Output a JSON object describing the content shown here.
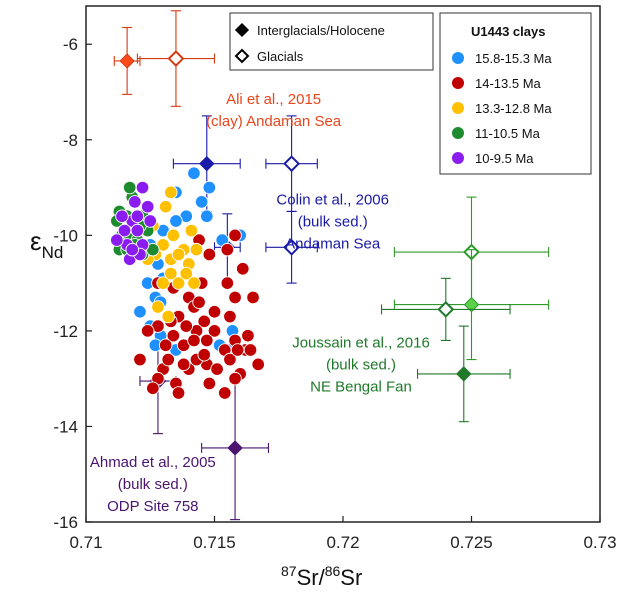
{
  "chart_data": {
    "type": "scatter",
    "xlabel": {
      "sup1": "87",
      "mid": "Sr/",
      "sup2": "86",
      "end": "Sr"
    },
    "ylabel": {
      "main": "ε",
      "sub": "Nd"
    },
    "xlim": [
      0.71,
      0.73
    ],
    "ylim": [
      -16,
      -5.2
    ],
    "xticks": [
      0.71,
      0.715,
      0.72,
      0.725,
      0.73
    ],
    "xtick_labels": [
      "0.71",
      "0.715",
      "0.72",
      "0.725",
      "0.73"
    ],
    "yticks": [
      -6,
      -8,
      -10,
      -12,
      -14,
      -16
    ],
    "ytick_labels": [
      "-6",
      "-8",
      "-10",
      "-12",
      "-14",
      "-16"
    ],
    "grid": false,
    "legend_symbols": {
      "placement": "top-center",
      "items": [
        {
          "label": "Interglacials/Holocene",
          "marker": "filled-diamond"
        },
        {
          "label": "Glacials",
          "marker": "open-diamond"
        }
      ]
    },
    "legend_clays": {
      "placement": "top-right",
      "title": "U1443 clays",
      "items": [
        {
          "label": "15.8-15.3 Ma",
          "color": "#1e90ff"
        },
        {
          "label": "14-13.5 Ma",
          "color": "#c00000"
        },
        {
          "label": "13.3-12.8 Ma",
          "color": "#ffc000"
        },
        {
          "label": "11-10.5 Ma",
          "color": "#1e8c2e"
        },
        {
          "label": "10-9.5 Ma",
          "color": "#8b1cf0"
        }
      ]
    },
    "series": [
      {
        "color": "#1e90ff",
        "points": [
          [
            0.7145,
            -9.3
          ],
          [
            0.7135,
            -9.1
          ],
          [
            0.7148,
            -9.0
          ],
          [
            0.7142,
            -8.7
          ],
          [
            0.7139,
            -9.6
          ],
          [
            0.713,
            -9.9
          ],
          [
            0.7125,
            -10.2
          ],
          [
            0.7128,
            -10.6
          ],
          [
            0.7124,
            -11.0
          ],
          [
            0.7127,
            -11.3
          ],
          [
            0.7121,
            -11.6
          ],
          [
            0.7129,
            -11.4
          ],
          [
            0.713,
            -10.9
          ],
          [
            0.7125,
            -11.9
          ],
          [
            0.7129,
            -12.1
          ],
          [
            0.7127,
            -12.3
          ],
          [
            0.7135,
            -12.4
          ],
          [
            0.7152,
            -12.3
          ],
          [
            0.7156,
            -12.4
          ],
          [
            0.7157,
            -12.0
          ],
          [
            0.716,
            -10.0
          ],
          [
            0.7153,
            -10.1
          ],
          [
            0.7147,
            -9.6
          ],
          [
            0.712,
            -10.3
          ],
          [
            0.7135,
            -9.7
          ]
        ]
      },
      {
        "color": "#c00000",
        "points": [
          [
            0.7158,
            -10.0
          ],
          [
            0.7155,
            -10.3
          ],
          [
            0.7148,
            -10.4
          ],
          [
            0.7144,
            -10.1
          ],
          [
            0.7161,
            -10.7
          ],
          [
            0.7155,
            -11.0
          ],
          [
            0.7145,
            -11.0
          ],
          [
            0.714,
            -11.3
          ],
          [
            0.7128,
            -11.0
          ],
          [
            0.7136,
            -11.7
          ],
          [
            0.7133,
            -11.8
          ],
          [
            0.7142,
            -11.5
          ],
          [
            0.715,
            -11.6
          ],
          [
            0.7158,
            -11.3
          ],
          [
            0.7165,
            -11.3
          ],
          [
            0.7163,
            -12.1
          ],
          [
            0.7158,
            -12.2
          ],
          [
            0.7162,
            -12.4
          ],
          [
            0.7154,
            -12.4
          ],
          [
            0.715,
            -12.0
          ],
          [
            0.7146,
            -11.8
          ],
          [
            0.7143,
            -12.0
          ],
          [
            0.7138,
            -12.3
          ],
          [
            0.7134,
            -12.1
          ],
          [
            0.7131,
            -12.3
          ],
          [
            0.7128,
            -11.9
          ],
          [
            0.7124,
            -12.0
          ],
          [
            0.7121,
            -12.6
          ],
          [
            0.713,
            -12.8
          ],
          [
            0.7128,
            -13.0
          ],
          [
            0.7135,
            -13.1
          ],
          [
            0.714,
            -12.8
          ],
          [
            0.7147,
            -12.7
          ],
          [
            0.7151,
            -12.8
          ],
          [
            0.7156,
            -12.6
          ],
          [
            0.7159,
            -12.4
          ],
          [
            0.7164,
            -12.4
          ],
          [
            0.7167,
            -12.7
          ],
          [
            0.7154,
            -13.3
          ],
          [
            0.7143,
            -12.6
          ],
          [
            0.7138,
            -12.7
          ],
          [
            0.7146,
            -12.5
          ],
          [
            0.7139,
            -11.9
          ],
          [
            0.7132,
            -12.6
          ],
          [
            0.7144,
            -11.4
          ],
          [
            0.716,
            -12.9
          ],
          [
            0.7126,
            -13.2
          ],
          [
            0.7136,
            -13.3
          ],
          [
            0.7148,
            -13.1
          ],
          [
            0.7158,
            -13.0
          ],
          [
            0.7142,
            -12.2
          ],
          [
            0.7156,
            -11.7
          ],
          [
            0.7134,
            -11.1
          ],
          [
            0.7147,
            -12.2
          ]
        ]
      },
      {
        "color": "#ffc000",
        "points": [
          [
            0.7133,
            -9.1
          ],
          [
            0.7131,
            -9.4
          ],
          [
            0.7126,
            -9.8
          ],
          [
            0.7134,
            -10.0
          ],
          [
            0.713,
            -10.2
          ],
          [
            0.7127,
            -10.4
          ],
          [
            0.7124,
            -10.5
          ],
          [
            0.7133,
            -10.5
          ],
          [
            0.7138,
            -10.3
          ],
          [
            0.7143,
            -10.3
          ],
          [
            0.714,
            -10.6
          ],
          [
            0.7133,
            -10.8
          ],
          [
            0.7136,
            -11.0
          ],
          [
            0.713,
            -11.0
          ],
          [
            0.7128,
            -11.5
          ],
          [
            0.7132,
            -11.7
          ],
          [
            0.7139,
            -10.8
          ],
          [
            0.7142,
            -11.0
          ],
          [
            0.7136,
            -10.4
          ],
          [
            0.7141,
            -9.9
          ]
        ]
      },
      {
        "color": "#1e8c2e",
        "points": [
          [
            0.7113,
            -9.5
          ],
          [
            0.7112,
            -9.7
          ],
          [
            0.7114,
            -10.0
          ],
          [
            0.7113,
            -10.3
          ],
          [
            0.7116,
            -10.3
          ],
          [
            0.7117,
            -10.0
          ],
          [
            0.7116,
            -9.6
          ],
          [
            0.7118,
            -9.2
          ],
          [
            0.7117,
            -9.0
          ],
          [
            0.7122,
            -9.6
          ],
          [
            0.7124,
            -9.9
          ],
          [
            0.7122,
            -10.4
          ],
          [
            0.712,
            -10.1
          ],
          [
            0.7126,
            -10.3
          ],
          [
            0.7121,
            -9.8
          ],
          [
            0.7119,
            -10.2
          ]
        ]
      },
      {
        "color": "#8b1cf0",
        "points": [
          [
            0.7122,
            -9.0
          ],
          [
            0.7119,
            -9.3
          ],
          [
            0.7124,
            -9.4
          ],
          [
            0.7118,
            -9.7
          ],
          [
            0.7115,
            -9.9
          ],
          [
            0.7116,
            -10.2
          ],
          [
            0.712,
            -9.9
          ],
          [
            0.7122,
            -10.2
          ],
          [
            0.7117,
            -10.5
          ],
          [
            0.7121,
            -10.4
          ],
          [
            0.7125,
            -9.7
          ],
          [
            0.7114,
            -9.6
          ],
          [
            0.712,
            -9.6
          ],
          [
            0.7118,
            -10.3
          ],
          [
            0.7112,
            -10.1
          ]
        ]
      }
    ],
    "errorbar_points": [
      {
        "x": 0.7116,
        "y": -6.35,
        "xerr": 0.0005,
        "yerr": 0.7,
        "filled": true,
        "color": "#ff4a1c",
        "dark": "#d63a10"
      },
      {
        "x": 0.7135,
        "y": -6.3,
        "xerr": 0.0015,
        "yerr": 1.0,
        "filled": false,
        "color": "#ff4a1c",
        "dark": "#d63a10"
      },
      {
        "x": 0.7147,
        "y": -8.5,
        "xerr": 0.0013,
        "yerr": 1.0,
        "filled": true,
        "color": "#1a1aa8",
        "dark": "#1a1aa8"
      },
      {
        "x": 0.7155,
        "y": -10.25,
        "xerr": 0.0005,
        "yerr": 0.7,
        "filled": true,
        "color": "#1a1aa8",
        "dark": "#1a1aa8"
      },
      {
        "x": 0.718,
        "y": -8.5,
        "xerr": 0.001,
        "yerr": 1.0,
        "filled": false,
        "color": "#1a1aa8",
        "dark": "#1a1aa8"
      },
      {
        "x": 0.718,
        "y": -10.25,
        "xerr": 0.001,
        "yerr": 0.75,
        "filled": false,
        "color": "#1a1aa8",
        "dark": "#1a1aa8"
      },
      {
        "x": 0.725,
        "y": -10.35,
        "xerr": 0.003,
        "yerr": 1.15,
        "filled": false,
        "color": "#5ad14a",
        "dark": "#2f9a2a"
      },
      {
        "x": 0.725,
        "y": -11.45,
        "xerr": 0.003,
        "yerr": 1.15,
        "filled": true,
        "color": "#5ad14a",
        "dark": "#2f9a2a"
      },
      {
        "x": 0.724,
        "y": -11.55,
        "xerr": 0.0025,
        "yerr": 0.65,
        "filled": false,
        "color": "#1f7a2a",
        "dark": "#1f7a2a"
      },
      {
        "x": 0.7247,
        "y": -12.9,
        "xerr": 0.0018,
        "yerr": 1.0,
        "filled": true,
        "color": "#1f7a2a",
        "dark": "#1f7a2a"
      },
      {
        "x": 0.7128,
        "y": -13.05,
        "xerr": 0.0007,
        "yerr": 1.1,
        "filled": false,
        "color": "#4a1470",
        "dark": "#4a1470"
      },
      {
        "x": 0.7158,
        "y": -14.45,
        "xerr": 0.0013,
        "yerr": 1.5,
        "filled": true,
        "color": "#4a1470",
        "dark": "#4a1470"
      }
    ],
    "annotations": [
      {
        "lines": [
          "Ali et al., 2015",
          "(clay) Andaman Sea"
        ],
        "color": "#e8461c",
        "x": 0.7173,
        "y": -7.25
      },
      {
        "lines": [
          "Colin et al., 2006",
          "(bulk sed.)",
          "Andaman Sea"
        ],
        "color": "#1a1aa8",
        "x": 0.7196,
        "y": -9.35
      },
      {
        "lines": [
          "Joussain et al., 2016",
          "(bulk sed.)",
          "NE Bengal Fan"
        ],
        "color": "#1f7a2a",
        "x": 0.7207,
        "y": -12.35
      },
      {
        "lines": [
          "Ahmad et al., 2005",
          "(bulk sed.)",
          "ODP Site 758"
        ],
        "color": "#4a1470",
        "x": 0.7126,
        "y": -14.85
      }
    ]
  }
}
